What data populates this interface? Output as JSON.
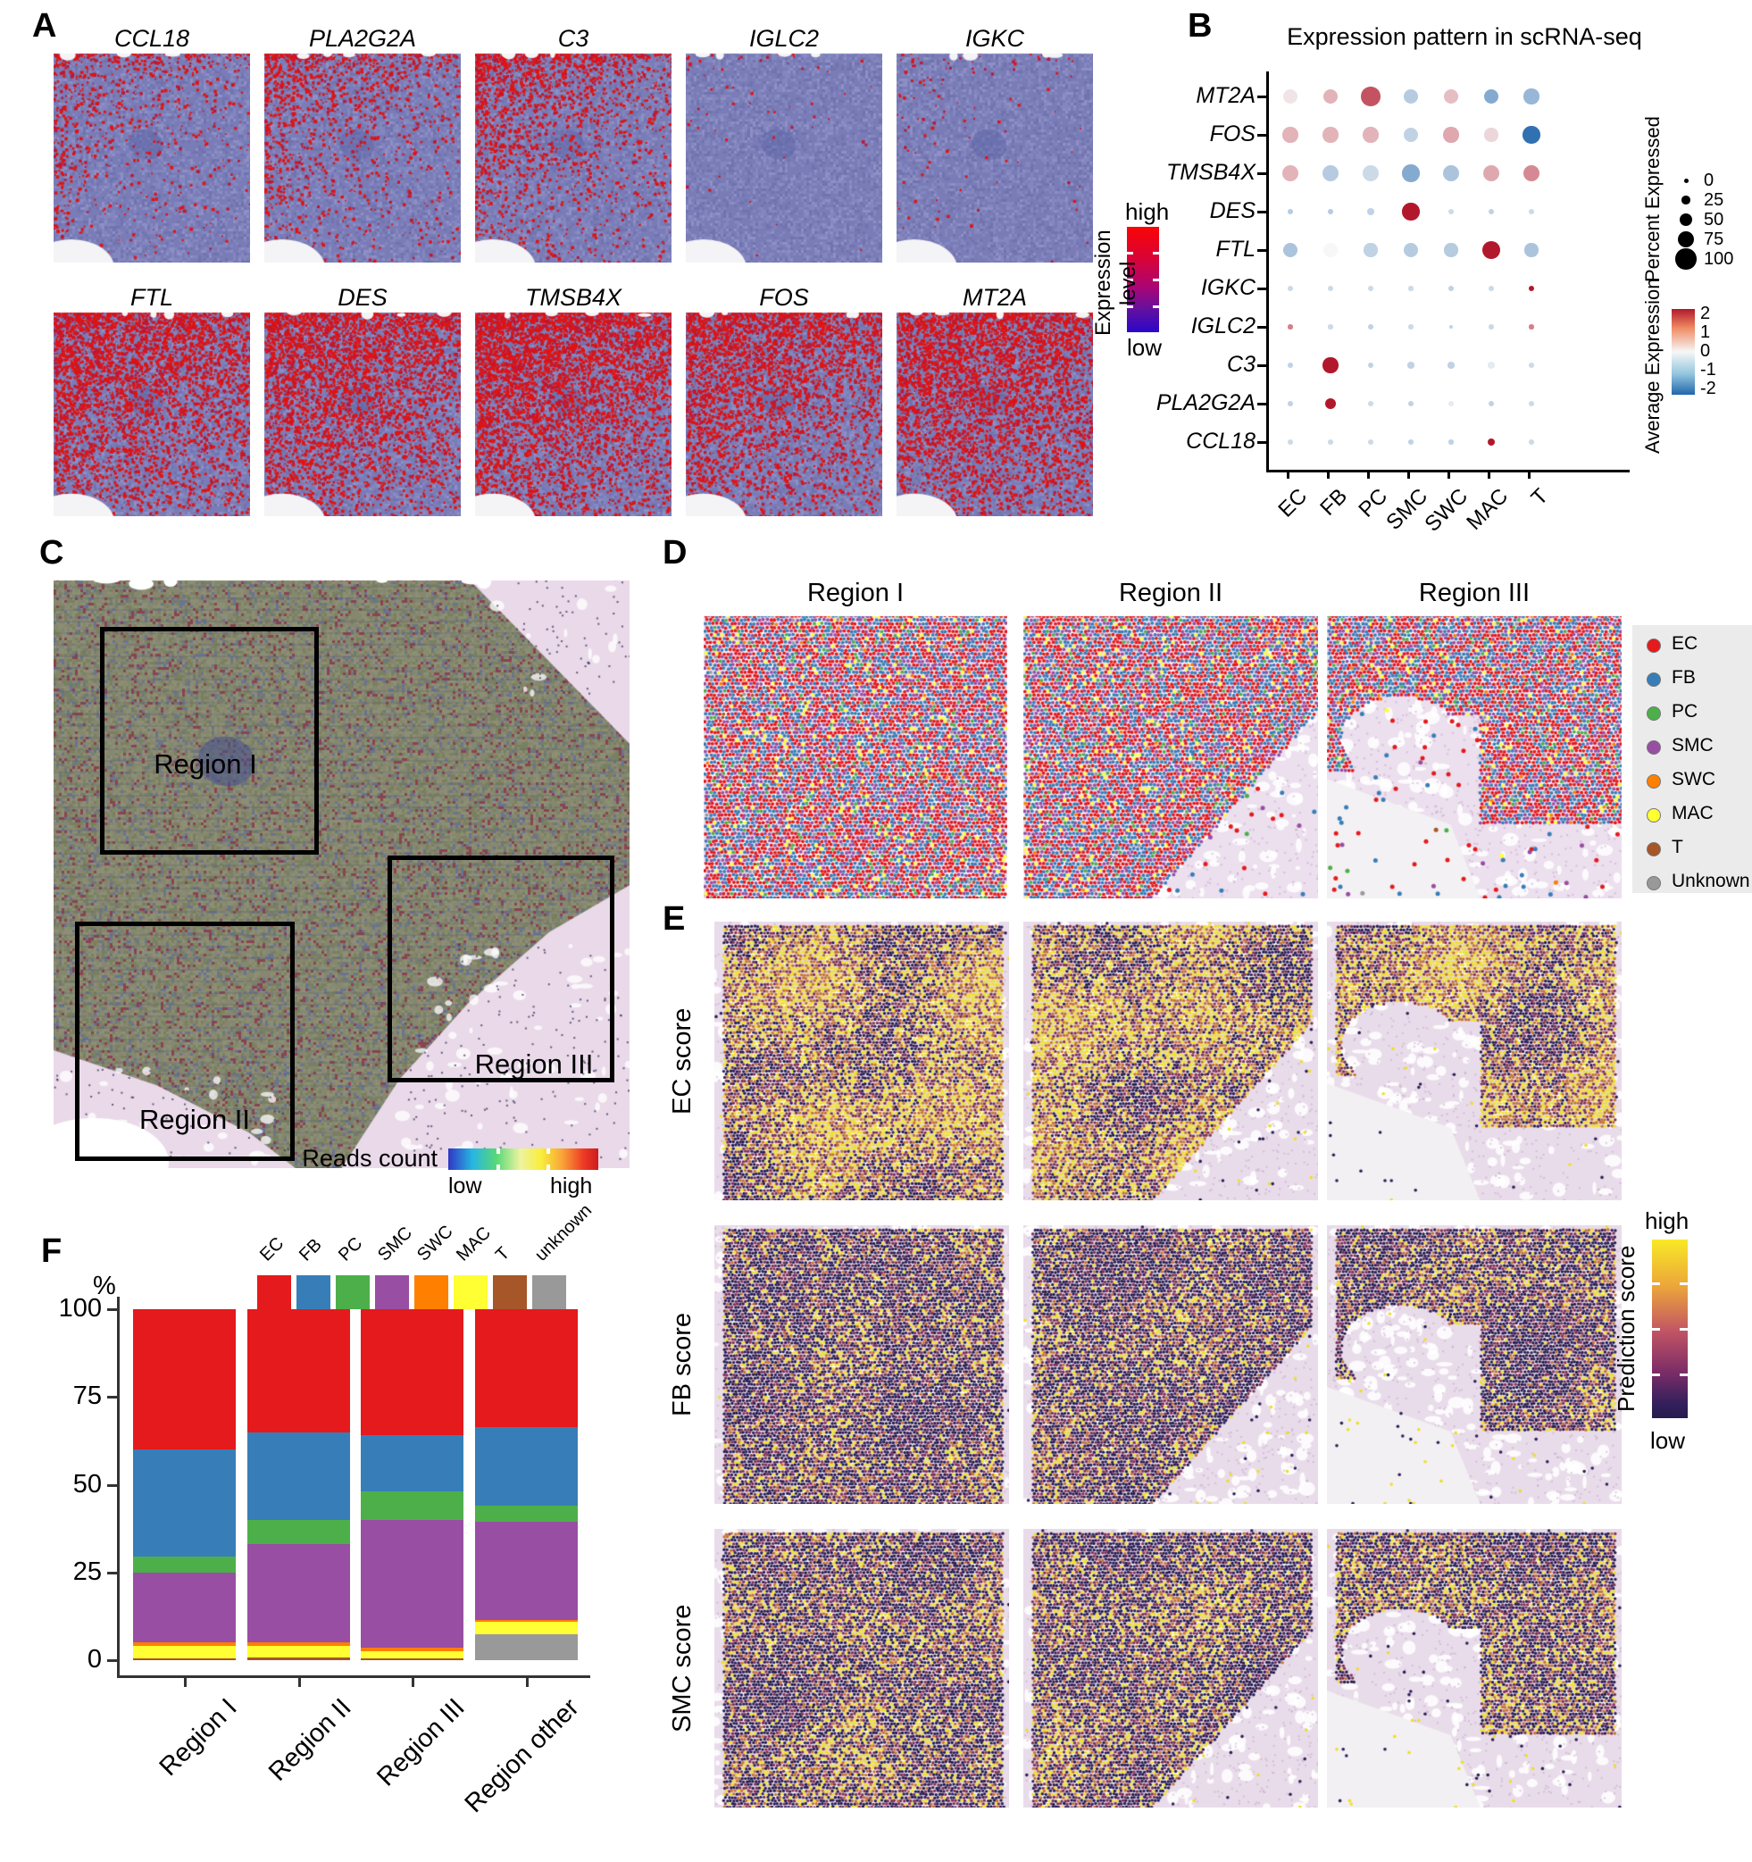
{
  "panel_a": {
    "label": "A",
    "genes_row1": [
      "CCL18",
      "PLA2G2A",
      "C3",
      "IGLC2",
      "IGKC"
    ],
    "genes_row2": [
      "FTL",
      "DES",
      "TMSB4X",
      "FOS",
      "MT2A"
    ],
    "colorbar": {
      "title": "Expression level",
      "high": "high",
      "low": "low"
    }
  },
  "panel_b": {
    "label": "B",
    "title": "Expression pattern in scRNA-seq",
    "legend_size": {
      "title": "Percent Expressed"
    },
    "legend_color": {
      "title": "Average Expression"
    }
  },
  "panel_c": {
    "label": "C",
    "regions": [
      "Region I",
      "Region II",
      "Region III"
    ],
    "colorbar": {
      "title": "Reads count",
      "low": "low",
      "high": "high"
    }
  },
  "panel_d": {
    "label": "D",
    "titles": [
      "Region I",
      "Region II",
      "Region III"
    ],
    "legend": [
      "EC",
      "FB",
      "PC",
      "SMC",
      "SWC",
      "MAC",
      "T",
      "Unknown"
    ]
  },
  "panel_e": {
    "label": "E",
    "row_labels": [
      "EC score",
      "FB score",
      "SMC score"
    ],
    "colorbar": {
      "title": "Prediction score",
      "high": "high",
      "low": "low"
    }
  },
  "panel_f": {
    "label": "F",
    "ylabel": "%"
  },
  "colors": {
    "EC": "#e41a1c",
    "FB": "#377eb8",
    "PC": "#4daf4a",
    "SMC": "#984ea3",
    "SWC": "#ff7f00",
    "MAC": "#ffff33",
    "T": "#a65628",
    "Unknown": "#999999",
    "unknown": "#999999"
  },
  "chart_data": [
    {
      "type": "scatter",
      "subtype": "dotplot",
      "title": "Expression pattern in scRNA-seq",
      "x_categories": [
        "EC",
        "FB",
        "PC",
        "SMC",
        "SWC",
        "MAC",
        "T"
      ],
      "y_categories": [
        "MT2A",
        "FOS",
        "TMSB4X",
        "DES",
        "FTL",
        "IGKC",
        "IGLC2",
        "C3",
        "PLA2G2A",
        "CCL18"
      ],
      "percent_expressed": [
        [
          60,
          60,
          85,
          60,
          60,
          60,
          65
        ],
        [
          65,
          65,
          65,
          60,
          65,
          55,
          75
        ],
        [
          70,
          70,
          70,
          75,
          70,
          70,
          70
        ],
        [
          15,
          15,
          20,
          75,
          15,
          15,
          12
        ],
        [
          60,
          60,
          55,
          60,
          55,
          80,
          55
        ],
        [
          10,
          10,
          10,
          8,
          10,
          10,
          12
        ],
        [
          8,
          8,
          10,
          8,
          6,
          8,
          8
        ],
        [
          15,
          65,
          15,
          18,
          18,
          18,
          12
        ],
        [
          12,
          40,
          15,
          15,
          12,
          12,
          10
        ],
        [
          10,
          10,
          12,
          10,
          8,
          22,
          10
        ]
      ],
      "average_expression": [
        [
          0.1,
          0.5,
          1.5,
          -0.5,
          0.4,
          -1.0,
          -0.8
        ],
        [
          0.5,
          0.5,
          0.5,
          -0.4,
          0.6,
          0.2,
          -2.0
        ],
        [
          0.5,
          -0.5,
          -0.3,
          -1.0,
          -0.6,
          0.6,
          0.9
        ],
        [
          -0.5,
          -0.5,
          -0.4,
          2.2,
          -0.3,
          -0.4,
          -0.3
        ],
        [
          -0.6,
          0.0,
          -0.4,
          -0.5,
          -0.5,
          2.2,
          -0.6
        ],
        [
          -0.3,
          -0.3,
          -0.3,
          -0.3,
          -0.4,
          -0.3,
          2.2
        ],
        [
          1.0,
          -0.3,
          -0.4,
          -0.3,
          -0.4,
          -0.3,
          1.0
        ],
        [
          -0.4,
          2.2,
          -0.4,
          -0.4,
          -0.4,
          -0.1,
          -0.3
        ],
        [
          -0.4,
          2.2,
          -0.3,
          -0.4,
          -0.1,
          -0.4,
          -0.3
        ],
        [
          -0.3,
          -0.3,
          -0.3,
          -0.4,
          -0.4,
          2.2,
          -0.3
        ]
      ],
      "legend": {
        "size": {
          "title": "Percent Expressed",
          "ticks": [
            0,
            25,
            50,
            75,
            100
          ]
        },
        "color": {
          "title": "Average Expression",
          "ticks": [
            2,
            1,
            0,
            -1,
            -2
          ],
          "scale": [
            "#b2182b",
            "#f7f7f7",
            "#2166ac"
          ]
        }
      }
    },
    {
      "type": "bar",
      "stacked": true,
      "ylabel": "%",
      "ylim": [
        0,
        100
      ],
      "yticks": [
        100,
        75,
        50,
        25,
        0
      ],
      "categories": [
        "Region I",
        "Region II",
        "Region III",
        "Region other"
      ],
      "series": [
        {
          "name": "EC",
          "values": [
            40,
            35,
            36,
            33.5
          ]
        },
        {
          "name": "FB",
          "values": [
            30.5,
            25,
            16,
            22.5
          ]
        },
        {
          "name": "PC",
          "values": [
            4.5,
            7,
            8,
            4.5
          ]
        },
        {
          "name": "SMC",
          "values": [
            20,
            28,
            36.5,
            28
          ]
        },
        {
          "name": "SWC",
          "values": [
            1,
            1,
            1,
            0.5
          ]
        },
        {
          "name": "MAC",
          "values": [
            3.5,
            3.2,
            2,
            3.5
          ]
        },
        {
          "name": "T",
          "values": [
            0.5,
            0.8,
            0.5,
            0
          ]
        },
        {
          "name": "unknown",
          "values": [
            0,
            0,
            0,
            7.5
          ]
        }
      ],
      "legend_order": [
        "EC",
        "FB",
        "PC",
        "SMC",
        "SWC",
        "MAC",
        "T",
        "unknown"
      ],
      "stack_order_bottom_to_top": [
        "unknown",
        "T",
        "MAC",
        "SWC",
        "SMC",
        "PC",
        "FB",
        "EC"
      ]
    }
  ]
}
